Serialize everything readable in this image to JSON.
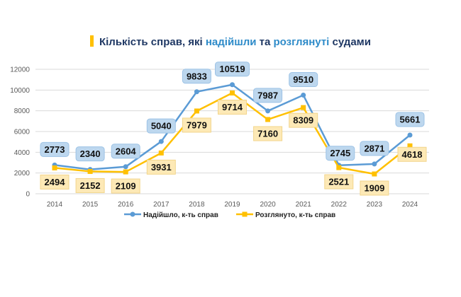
{
  "title": {
    "part1": "Кількість справ, які ",
    "part2": "надійшли",
    "part3": " та ",
    "part4": "розглянуті",
    "part5": " судами"
  },
  "colors": {
    "title": "#1f3864",
    "highlight": "#2e8bc9",
    "accent": "#ffc000",
    "series1": "#5b9bd5",
    "series2": "#ffc000"
  },
  "chart_data": {
    "type": "line",
    "categories": [
      "2014",
      "2015",
      "2016",
      "2017",
      "2018",
      "2019",
      "2020",
      "2021",
      "2022",
      "2023",
      "2024"
    ],
    "series": [
      {
        "name": "Надійшло, к-ть справ",
        "values": [
          2773,
          2340,
          2604,
          5040,
          9833,
          10519,
          7987,
          9510,
          2745,
          2871,
          5661
        ]
      },
      {
        "name": "Розглянуто, к-ть справ",
        "values": [
          2494,
          2152,
          2109,
          3931,
          7979,
          9714,
          7160,
          8309,
          2521,
          1909,
          4618
        ]
      }
    ],
    "ylim": [
      0,
      12000
    ],
    "yticks": [
      "0",
      "2000",
      "4000",
      "6000",
      "8000",
      "10000",
      "12000"
    ],
    "grid": true,
    "legend": "bottom"
  }
}
